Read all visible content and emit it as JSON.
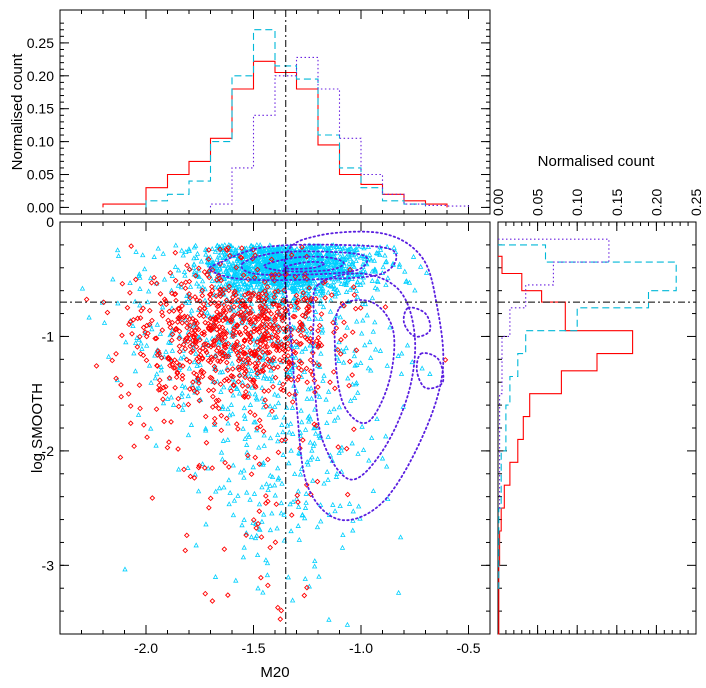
{
  "chart_data": [
    {
      "type": "scatter",
      "panel": "main",
      "xlabel": "M20",
      "ylabel": "log SMOOTH",
      "xlim": [
        -2.4,
        -0.4
      ],
      "ylim": [
        -3.6,
        0.0
      ],
      "xticks": [
        -2.0,
        -1.5,
        -1.0,
        -0.5
      ],
      "xtick_labels": [
        "-2.0",
        "-1.5",
        "-1.0",
        "-0.5"
      ],
      "yticks": [
        0,
        -1,
        -2,
        -3
      ],
      "ytick_labels": [
        "0",
        "-1",
        "-2",
        "-3"
      ],
      "reference_lines": {
        "x": -1.35,
        "y": -0.7
      },
      "series": [
        {
          "name": "red",
          "marker": "diamond",
          "color": "#ff0000",
          "clusters": [
            {
              "cx": -1.55,
              "cy": -0.95,
              "sx": 0.22,
              "sy": 0.28,
              "n": 650
            },
            {
              "cx": -1.9,
              "cy": -1.2,
              "sx": 0.18,
              "sy": 0.4,
              "n": 80
            },
            {
              "cx": -1.5,
              "cy": -1.9,
              "sx": 0.22,
              "sy": 0.65,
              "n": 120
            }
          ]
        },
        {
          "name": "cyan",
          "marker": "triangle",
          "color": "#00d0ff",
          "clusters": [
            {
              "cx": -1.35,
              "cy": -0.4,
              "sx": 0.2,
              "sy": 0.12,
              "n": 1300
            },
            {
              "cx": -1.5,
              "cy": -1.0,
              "sx": 0.3,
              "sy": 0.4,
              "n": 500
            },
            {
              "cx": -1.35,
              "cy": -2.1,
              "sx": 0.22,
              "sy": 0.55,
              "n": 250
            }
          ]
        }
      ],
      "contours": {
        "color": "#5a1ee0",
        "levels": [
          {
            "points": [
              [
                -1.65,
                -0.35
              ],
              [
                -1.45,
                -0.22
              ],
              [
                -1.1,
                -0.2
              ],
              [
                -0.85,
                -0.25
              ],
              [
                -0.9,
                -0.45
              ],
              [
                -1.2,
                -0.5
              ],
              [
                -1.55,
                -0.5
              ],
              [
                -1.7,
                -0.42
              ]
            ]
          },
          {
            "points": [
              [
                -1.55,
                -0.36
              ],
              [
                -1.4,
                -0.27
              ],
              [
                -1.15,
                -0.26
              ],
              [
                -0.98,
                -0.3
              ],
              [
                -1.02,
                -0.42
              ],
              [
                -1.25,
                -0.46
              ],
              [
                -1.5,
                -0.45
              ]
            ]
          },
          {
            "points": [
              [
                -1.45,
                -0.38
              ],
              [
                -1.3,
                -0.31
              ],
              [
                -1.15,
                -0.31
              ],
              [
                -1.08,
                -0.36
              ],
              [
                -1.15,
                -0.42
              ],
              [
                -1.35,
                -0.43
              ]
            ]
          },
          {
            "points": [
              [
                -1.35,
                -0.39
              ],
              [
                -1.25,
                -0.35
              ],
              [
                -1.17,
                -0.36
              ],
              [
                -1.22,
                -0.4
              ],
              [
                -1.32,
                -0.41
              ]
            ]
          },
          {
            "points": [
              [
                -1.35,
                -0.3
              ],
              [
                -1.2,
                -0.12
              ],
              [
                -0.9,
                -0.1
              ],
              [
                -0.72,
                -0.3
              ],
              [
                -0.65,
                -0.7
              ],
              [
                -0.62,
                -1.3
              ],
              [
                -0.72,
                -1.9
              ],
              [
                -0.9,
                -2.45
              ],
              [
                -1.1,
                -2.6
              ],
              [
                -1.25,
                -2.3
              ],
              [
                -1.3,
                -1.6
              ],
              [
                -1.33,
                -0.9
              ]
            ]
          },
          {
            "points": [
              [
                -1.2,
                -0.55
              ],
              [
                -1.0,
                -0.45
              ],
              [
                -0.82,
                -0.6
              ],
              [
                -0.75,
                -1.0
              ],
              [
                -0.78,
                -1.5
              ],
              [
                -0.9,
                -2.0
              ],
              [
                -1.05,
                -2.25
              ],
              [
                -1.18,
                -1.9
              ],
              [
                -1.22,
                -1.3
              ],
              [
                -1.22,
                -0.85
              ]
            ]
          },
          {
            "points": [
              [
                -1.1,
                -0.75
              ],
              [
                -0.95,
                -0.7
              ],
              [
                -0.85,
                -0.95
              ],
              [
                -0.87,
                -1.4
              ],
              [
                -0.97,
                -1.75
              ],
              [
                -1.08,
                -1.6
              ],
              [
                -1.12,
                -1.15
              ]
            ]
          },
          {
            "points": [
              [
                -0.78,
                -0.75
              ],
              [
                -0.7,
                -0.8
              ],
              [
                -0.68,
                -0.95
              ],
              [
                -0.75,
                -1.0
              ],
              [
                -0.8,
                -0.88
              ]
            ]
          },
          {
            "points": [
              [
                -0.72,
                -1.15
              ],
              [
                -0.64,
                -1.2
              ],
              [
                -0.62,
                -1.4
              ],
              [
                -0.7,
                -1.45
              ],
              [
                -0.74,
                -1.3
              ]
            ]
          }
        ]
      }
    },
    {
      "type": "histogram",
      "panel": "top",
      "ylabel": "Normalised count",
      "xlim": [
        -2.4,
        -0.4
      ],
      "ylim": [
        -0.01,
        0.3
      ],
      "yticks": [
        0.0,
        0.05,
        0.1,
        0.15,
        0.2,
        0.25
      ],
      "ytick_labels": [
        "0.00",
        "0.05",
        "0.10",
        "0.15",
        "0.20",
        "0.25"
      ],
      "reference_line_x": -1.35,
      "series": [
        {
          "name": "red",
          "style": "solid",
          "color": "#ff0000",
          "edges": [
            -2.2,
            -2.0,
            -1.9,
            -1.8,
            -1.7,
            -1.6,
            -1.5,
            -1.4,
            -1.3,
            -1.2,
            -1.1,
            -1.0,
            -0.9,
            -0.8,
            -0.7,
            -0.6
          ],
          "values": [
            0.005,
            0.03,
            0.05,
            0.07,
            0.105,
            0.18,
            0.222,
            0.205,
            0.18,
            0.095,
            0.05,
            0.035,
            0.02,
            0.01,
            0.005
          ]
        },
        {
          "name": "cyan",
          "style": "dashed",
          "color": "#00b8d8",
          "edges": [
            -2.0,
            -1.9,
            -1.8,
            -1.7,
            -1.6,
            -1.5,
            -1.4,
            -1.3,
            -1.2,
            -1.1,
            -1.0,
            -0.9,
            -0.8,
            -0.7
          ],
          "values": [
            0.01,
            0.02,
            0.04,
            0.1,
            0.2,
            0.27,
            0.215,
            0.195,
            0.11,
            0.06,
            0.03,
            0.01,
            0.005
          ]
        },
        {
          "name": "purple",
          "style": "dotted",
          "color": "#6a22e0",
          "edges": [
            -1.7,
            -1.6,
            -1.5,
            -1.4,
            -1.3,
            -1.2,
            -1.1,
            -1.0,
            -0.9,
            -0.8,
            -0.7,
            -0.6,
            -0.5
          ],
          "values": [
            0.005,
            0.06,
            0.14,
            0.2,
            0.228,
            0.18,
            0.105,
            0.05,
            0.02,
            0.005,
            0.003,
            0.002
          ]
        }
      ]
    },
    {
      "type": "histogram",
      "panel": "right",
      "orientation": "horizontal",
      "xlabel": "Normalised count",
      "xlim": [
        0.0,
        0.25
      ],
      "xticks": [
        0.0,
        0.05,
        0.1,
        0.15,
        0.2,
        0.25
      ],
      "xtick_labels": [
        "0.00",
        "0.05",
        "0.10",
        "0.15",
        "0.20",
        "0.25"
      ],
      "ylim": [
        -3.6,
        0.0
      ],
      "reference_line_y": -0.7,
      "series": [
        {
          "name": "red",
          "style": "solid",
          "color": "#ff0000",
          "edges": [
            -0.3,
            -0.45,
            -0.6,
            -0.7,
            -0.95,
            -1.15,
            -1.3,
            -1.5,
            -1.7,
            -1.9,
            -2.1,
            -2.3,
            -2.5,
            -2.7,
            -3.0,
            -3.6
          ],
          "values": [
            0.005,
            0.03,
            0.055,
            0.085,
            0.17,
            0.125,
            0.08,
            0.04,
            0.032,
            0.025,
            0.015,
            0.008,
            0.004,
            0.002,
            0.001
          ]
        },
        {
          "name": "cyan",
          "style": "dashed",
          "color": "#00b8d8",
          "edges": [
            -0.2,
            -0.35,
            -0.6,
            -0.75,
            -0.95,
            -1.15,
            -1.35,
            -1.6,
            -2.0,
            -2.5,
            -3.2
          ],
          "values": [
            0.06,
            0.225,
            0.19,
            0.1,
            0.035,
            0.025,
            0.015,
            0.01,
            0.004,
            0.001
          ]
        },
        {
          "name": "purple",
          "style": "dotted",
          "color": "#6a22e0",
          "edges": [
            -0.15,
            -0.35,
            -0.55,
            -0.75,
            -1.0,
            -1.5,
            -2.5
          ],
          "values": [
            0.14,
            0.07,
            0.035,
            0.015,
            0.005,
            0.002
          ]
        }
      ]
    }
  ]
}
